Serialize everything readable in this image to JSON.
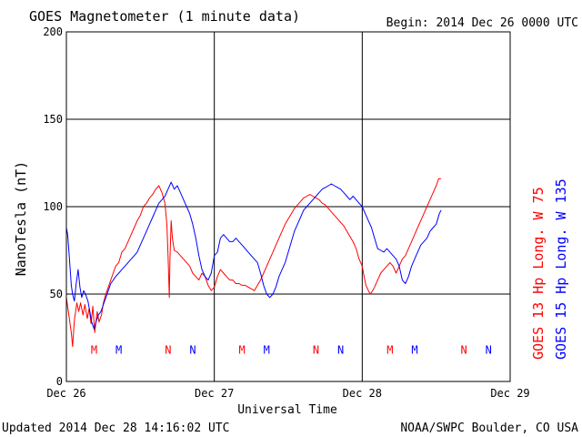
{
  "chart_data": {
    "type": "line",
    "title": "GOES Magnetometer (1 minute data)",
    "begin_label": "Begin:  2014 Dec 26 0000 UTC",
    "ylabel": "NanoTesla (nT)",
    "xlabel": "Universal Time",
    "ylim": [
      0,
      200
    ],
    "xlim": [
      0,
      72
    ],
    "x_unit": "hours since 2014 Dec 26 0000 UTC",
    "yticks": [
      {
        "value": 0,
        "label": "0"
      },
      {
        "value": 50,
        "label": "50"
      },
      {
        "value": 100,
        "label": "100"
      },
      {
        "value": 150,
        "label": "150"
      },
      {
        "value": 200,
        "label": "200"
      }
    ],
    "xticks": [
      {
        "value": 0,
        "label": "Dec 26"
      },
      {
        "value": 24,
        "label": "Dec 27"
      },
      {
        "value": 48,
        "label": "Dec 28"
      },
      {
        "value": 72,
        "label": "Dec 29"
      }
    ],
    "grid": true,
    "series": [
      {
        "name": "GOES 13 Hp",
        "longitude": "Long. W 75",
        "color": "#ff0000",
        "points": [
          [
            0,
            48
          ],
          [
            0.4,
            38
          ],
          [
            0.8,
            28
          ],
          [
            1.0,
            20
          ],
          [
            1.3,
            35
          ],
          [
            1.7,
            45
          ],
          [
            2.0,
            40
          ],
          [
            2.3,
            45
          ],
          [
            2.7,
            38
          ],
          [
            3.0,
            44
          ],
          [
            3.4,
            36
          ],
          [
            3.7,
            42
          ],
          [
            4.0,
            33
          ],
          [
            4.3,
            43
          ],
          [
            4.6,
            28
          ],
          [
            5.0,
            40
          ],
          [
            5.3,
            34
          ],
          [
            5.7,
            38
          ],
          [
            6.0,
            45
          ],
          [
            6.4,
            50
          ],
          [
            6.8,
            54
          ],
          [
            7.2,
            58
          ],
          [
            7.6,
            62
          ],
          [
            8.0,
            66
          ],
          [
            8.5,
            68
          ],
          [
            9.0,
            74
          ],
          [
            9.5,
            76
          ],
          [
            10,
            80
          ],
          [
            10.5,
            84
          ],
          [
            11,
            88
          ],
          [
            11.5,
            92
          ],
          [
            12,
            95
          ],
          [
            12.5,
            100
          ],
          [
            13,
            102
          ],
          [
            13.5,
            105
          ],
          [
            14,
            107
          ],
          [
            14.5,
            110
          ],
          [
            15,
            112
          ],
          [
            15.5,
            108
          ],
          [
            16,
            102
          ],
          [
            16.3,
            90
          ],
          [
            16.5,
            72
          ],
          [
            16.6,
            60
          ],
          [
            16.7,
            48
          ],
          [
            16.8,
            70
          ],
          [
            17.0,
            92
          ],
          [
            17.2,
            82
          ],
          [
            17.5,
            75
          ],
          [
            18,
            74
          ],
          [
            18.5,
            72
          ],
          [
            19,
            70
          ],
          [
            19.5,
            68
          ],
          [
            20,
            66
          ],
          [
            20.5,
            62
          ],
          [
            21,
            60
          ],
          [
            21.5,
            58
          ],
          [
            22,
            62
          ],
          [
            22.5,
            60
          ],
          [
            23,
            55
          ],
          [
            23.5,
            52
          ],
          [
            24,
            54
          ],
          [
            24.5,
            60
          ],
          [
            25,
            64
          ],
          [
            25.5,
            62
          ],
          [
            26,
            60
          ],
          [
            26.5,
            58
          ],
          [
            27,
            58
          ],
          [
            27.5,
            56
          ],
          [
            28,
            56
          ],
          [
            28.5,
            55
          ],
          [
            29,
            55
          ],
          [
            29.5,
            54
          ],
          [
            30,
            53
          ],
          [
            30.5,
            52
          ],
          [
            31,
            55
          ],
          [
            31.5,
            58
          ],
          [
            32,
            62
          ],
          [
            32.5,
            66
          ],
          [
            33,
            70
          ],
          [
            33.5,
            74
          ],
          [
            34,
            78
          ],
          [
            34.5,
            82
          ],
          [
            35,
            86
          ],
          [
            35.5,
            90
          ],
          [
            36,
            93
          ],
          [
            36.5,
            96
          ],
          [
            37,
            99
          ],
          [
            37.5,
            101
          ],
          [
            38,
            103
          ],
          [
            38.5,
            105
          ],
          [
            39,
            106
          ],
          [
            39.5,
            107
          ],
          [
            40,
            106
          ],
          [
            40.5,
            105
          ],
          [
            41,
            104
          ],
          [
            41.5,
            102
          ],
          [
            42,
            101
          ],
          [
            42.5,
            99
          ],
          [
            43,
            97
          ],
          [
            43.5,
            95
          ],
          [
            44,
            93
          ],
          [
            44.5,
            91
          ],
          [
            45,
            89
          ],
          [
            45.5,
            86
          ],
          [
            46,
            83
          ],
          [
            46.5,
            80
          ],
          [
            47,
            76
          ],
          [
            47.5,
            70
          ],
          [
            48,
            66
          ],
          [
            48.3,
            60
          ],
          [
            48.6,
            55
          ],
          [
            49,
            52
          ],
          [
            49.3,
            50
          ],
          [
            49.7,
            52
          ],
          [
            50,
            54
          ],
          [
            50.5,
            58
          ],
          [
            51,
            62
          ],
          [
            51.5,
            64
          ],
          [
            52,
            66
          ],
          [
            52.5,
            68
          ],
          [
            53,
            66
          ],
          [
            53.5,
            62
          ],
          [
            54,
            66
          ],
          [
            54.5,
            70
          ],
          [
            55,
            72
          ],
          [
            55.5,
            76
          ],
          [
            56,
            80
          ],
          [
            56.5,
            84
          ],
          [
            57,
            88
          ],
          [
            57.5,
            92
          ],
          [
            58,
            96
          ],
          [
            58.5,
            100
          ],
          [
            59,
            104
          ],
          [
            59.5,
            108
          ],
          [
            60,
            112
          ],
          [
            60.4,
            116
          ],
          [
            60.8,
            116
          ]
        ]
      },
      {
        "name": "GOES 15 Hp",
        "longitude": "Long. W 135",
        "color": "#0000ff",
        "points": [
          [
            0,
            88
          ],
          [
            0.2,
            84
          ],
          [
            0.5,
            70
          ],
          [
            0.8,
            55
          ],
          [
            1.0,
            50
          ],
          [
            1.3,
            46
          ],
          [
            1.6,
            56
          ],
          [
            1.9,
            64
          ],
          [
            2.2,
            54
          ],
          [
            2.5,
            48
          ],
          [
            2.8,
            52
          ],
          [
            3.1,
            50
          ],
          [
            3.5,
            46
          ],
          [
            3.8,
            40
          ],
          [
            4.1,
            34
          ],
          [
            4.5,
            30
          ],
          [
            4.8,
            34
          ],
          [
            5.2,
            38
          ],
          [
            5.6,
            40
          ],
          [
            6.0,
            44
          ],
          [
            6.4,
            48
          ],
          [
            6.8,
            52
          ],
          [
            7.2,
            56
          ],
          [
            7.6,
            58
          ],
          [
            8.0,
            60
          ],
          [
            8.5,
            62
          ],
          [
            9.0,
            64
          ],
          [
            9.5,
            66
          ],
          [
            10,
            68
          ],
          [
            10.5,
            70
          ],
          [
            11,
            72
          ],
          [
            11.5,
            74
          ],
          [
            12,
            78
          ],
          [
            12.5,
            82
          ],
          [
            13,
            86
          ],
          [
            13.5,
            90
          ],
          [
            14,
            94
          ],
          [
            14.5,
            98
          ],
          [
            15,
            102
          ],
          [
            15.5,
            104
          ],
          [
            16,
            106
          ],
          [
            16.5,
            110
          ],
          [
            17,
            114
          ],
          [
            17.5,
            110
          ],
          [
            18,
            112
          ],
          [
            18.5,
            108
          ],
          [
            19,
            104
          ],
          [
            19.5,
            100
          ],
          [
            20,
            96
          ],
          [
            20.5,
            90
          ],
          [
            21,
            82
          ],
          [
            21.5,
            72
          ],
          [
            22,
            64
          ],
          [
            22.5,
            60
          ],
          [
            23,
            58
          ],
          [
            23.5,
            62
          ],
          [
            24,
            72
          ],
          [
            24.5,
            74
          ],
          [
            25,
            82
          ],
          [
            25.5,
            84
          ],
          [
            26,
            82
          ],
          [
            26.5,
            80
          ],
          [
            27,
            80
          ],
          [
            27.5,
            82
          ],
          [
            28,
            80
          ],
          [
            28.5,
            78
          ],
          [
            29,
            76
          ],
          [
            29.5,
            74
          ],
          [
            30,
            72
          ],
          [
            30.5,
            70
          ],
          [
            31,
            68
          ],
          [
            31.5,
            62
          ],
          [
            32,
            55
          ],
          [
            32.5,
            50
          ],
          [
            33,
            48
          ],
          [
            33.5,
            50
          ],
          [
            34,
            54
          ],
          [
            34.5,
            60
          ],
          [
            35,
            64
          ],
          [
            35.5,
            68
          ],
          [
            36,
            74
          ],
          [
            36.5,
            80
          ],
          [
            37,
            86
          ],
          [
            37.5,
            90
          ],
          [
            38,
            94
          ],
          [
            38.5,
            98
          ],
          [
            39,
            100
          ],
          [
            39.5,
            102
          ],
          [
            40,
            104
          ],
          [
            40.5,
            106
          ],
          [
            41,
            108
          ],
          [
            41.5,
            110
          ],
          [
            42,
            111
          ],
          [
            42.5,
            112
          ],
          [
            43,
            113
          ],
          [
            43.5,
            112
          ],
          [
            44,
            111
          ],
          [
            44.5,
            110
          ],
          [
            45,
            108
          ],
          [
            45.5,
            106
          ],
          [
            46,
            104
          ],
          [
            46.5,
            106
          ],
          [
            47,
            104
          ],
          [
            47.5,
            102
          ],
          [
            48,
            100
          ],
          [
            48.5,
            96
          ],
          [
            49,
            92
          ],
          [
            49.5,
            88
          ],
          [
            50,
            82
          ],
          [
            50.5,
            76
          ],
          [
            51,
            75
          ],
          [
            51.5,
            74
          ],
          [
            52,
            76
          ],
          [
            52.5,
            74
          ],
          [
            53,
            72
          ],
          [
            53.5,
            70
          ],
          [
            54,
            66
          ],
          [
            54.5,
            58
          ],
          [
            55,
            56
          ],
          [
            55.5,
            60
          ],
          [
            56,
            66
          ],
          [
            56.5,
            70
          ],
          [
            57,
            74
          ],
          [
            57.5,
            78
          ],
          [
            58,
            80
          ],
          [
            58.5,
            82
          ],
          [
            59,
            86
          ],
          [
            59.5,
            88
          ],
          [
            60,
            90
          ],
          [
            60.5,
            96
          ],
          [
            60.8,
            98
          ]
        ]
      }
    ],
    "annotations": [
      {
        "label": "M",
        "x": 4.5,
        "y": 16,
        "color": "#ff0000"
      },
      {
        "label": "M",
        "x": 8.5,
        "y": 16,
        "color": "#0000ff"
      },
      {
        "label": "N",
        "x": 16.5,
        "y": 16,
        "color": "#ff0000"
      },
      {
        "label": "N",
        "x": 20.5,
        "y": 16,
        "color": "#0000ff"
      },
      {
        "label": "M",
        "x": 28.5,
        "y": 16,
        "color": "#ff0000"
      },
      {
        "label": "M",
        "x": 32.5,
        "y": 16,
        "color": "#0000ff"
      },
      {
        "label": "N",
        "x": 40.5,
        "y": 16,
        "color": "#ff0000"
      },
      {
        "label": "N",
        "x": 44.5,
        "y": 16,
        "color": "#0000ff"
      },
      {
        "label": "M",
        "x": 52.5,
        "y": 16,
        "color": "#ff0000"
      },
      {
        "label": "M",
        "x": 56.5,
        "y": 16,
        "color": "#0000ff"
      },
      {
        "label": "N",
        "x": 64.5,
        "y": 16,
        "color": "#ff0000"
      },
      {
        "label": "N",
        "x": 68.5,
        "y": 16,
        "color": "#0000ff"
      }
    ]
  },
  "footer": {
    "updated": "Updated 2014 Dec 28 14:16:02 UTC",
    "source": "NOAA/SWPC Boulder, CO USA"
  }
}
